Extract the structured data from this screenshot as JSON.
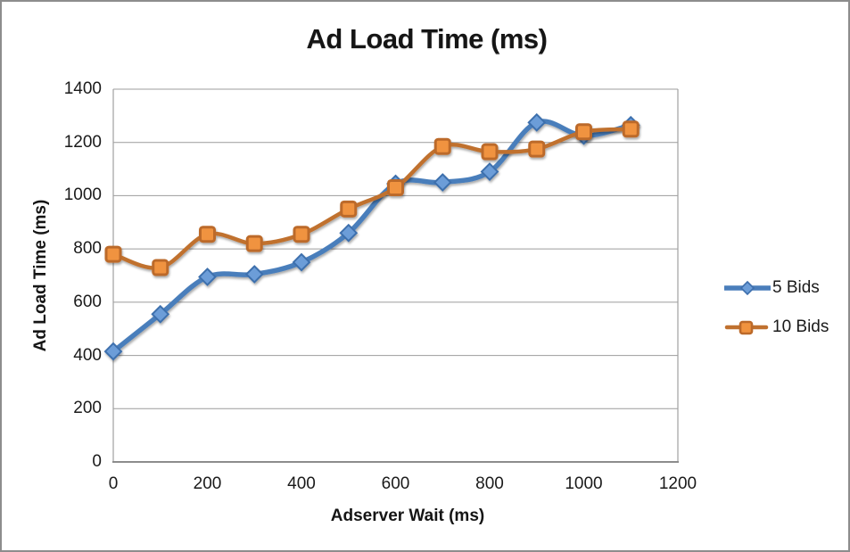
{
  "chart_data": {
    "type": "line",
    "title": "Ad Load Time (ms)",
    "xlabel": "Adserver Wait (ms)",
    "ylabel": "Ad Load Time (ms)",
    "x": [
      0,
      100,
      200,
      300,
      400,
      500,
      600,
      700,
      800,
      900,
      1000,
      1100
    ],
    "x_ticks": [
      0,
      200,
      400,
      600,
      800,
      1000,
      1200
    ],
    "y_ticks": [
      0,
      200,
      400,
      600,
      800,
      1000,
      1200,
      1400
    ],
    "xlim": [
      0,
      1200
    ],
    "ylim": [
      0,
      1400
    ],
    "grid": "horizontal-gridlines",
    "legend_position": "right",
    "line_style": "smooth",
    "series": [
      {
        "name": "5 Bids",
        "marker": "diamond",
        "line_color": "#4A7EBB",
        "marker_fill": "#6C9DD8",
        "marker_stroke": "#3E6FAD",
        "values": [
          415,
          555,
          695,
          705,
          750,
          860,
          1045,
          1050,
          1090,
          1275,
          1225,
          1265
        ]
      },
      {
        "name": "10 Bids",
        "marker": "square",
        "line_color": "#C0712F",
        "marker_fill": "#F0933F",
        "marker_stroke": "#BC6A2A",
        "values": [
          780,
          730,
          855,
          820,
          855,
          950,
          1030,
          1185,
          1165,
          1175,
          1240,
          1250
        ]
      }
    ],
    "colors": {
      "gridline": "#9C9C9C",
      "axis_line": "#8C8C8C",
      "plot_border": "#A0A0A0",
      "frame_border": "#8D8D8D",
      "background": "#FFFFFF",
      "text": "#1A1A1A"
    }
  }
}
